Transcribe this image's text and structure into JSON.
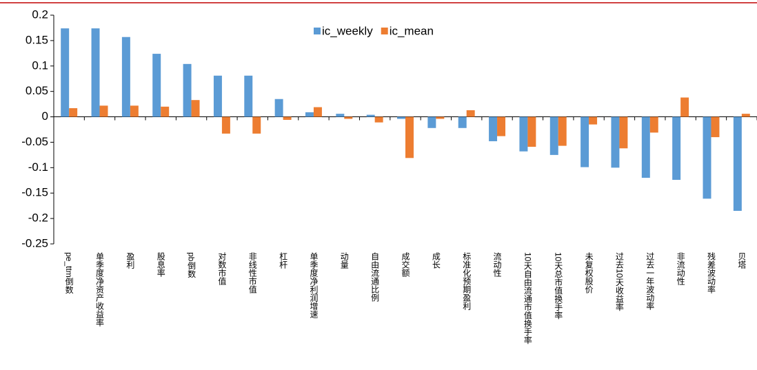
{
  "chart_data": {
    "type": "bar",
    "categories": [
      "pe_ttm倒数",
      "单季度净资产收益率",
      "盈利",
      "股息率",
      "pb倒数",
      "对数市值",
      "非线性市值",
      "杠杆",
      "单季度净利润增速",
      "动量",
      "自由流通比例",
      "成交额",
      "成长",
      "标准化预期盈利",
      "流动性",
      "10天自由流通市值换手率",
      "10天总市值换手率",
      "未复权股价",
      "过去10天收益率",
      "过去一年波动率",
      "非流动性",
      "残差波动率",
      "贝塔"
    ],
    "series": [
      {
        "name": "ic_weekly",
        "color": "#5b9bd5",
        "values": [
          0.174,
          0.174,
          0.157,
          0.124,
          0.104,
          0.081,
          0.081,
          0.035,
          0.009,
          0.006,
          0.004,
          -0.004,
          -0.022,
          -0.022,
          -0.048,
          -0.068,
          -0.075,
          -0.099,
          -0.1,
          -0.12,
          -0.124,
          -0.161,
          -0.185
        ]
      },
      {
        "name": "ic_mean",
        "color": "#ed7d31",
        "values": [
          0.017,
          0.022,
          0.022,
          0.02,
          0.033,
          -0.033,
          -0.033,
          -0.006,
          0.019,
          -0.004,
          -0.011,
          -0.081,
          -0.004,
          0.013,
          -0.038,
          -0.059,
          -0.057,
          -0.015,
          -0.062,
          -0.031,
          0.038,
          -0.04,
          0.006
        ]
      }
    ],
    "ylim": [
      -0.25,
      0.2
    ],
    "yticks": [
      -0.25,
      -0.2,
      -0.15,
      -0.1,
      -0.05,
      0,
      0.05,
      0.1,
      0.15,
      0.2
    ],
    "legend": "top"
  }
}
